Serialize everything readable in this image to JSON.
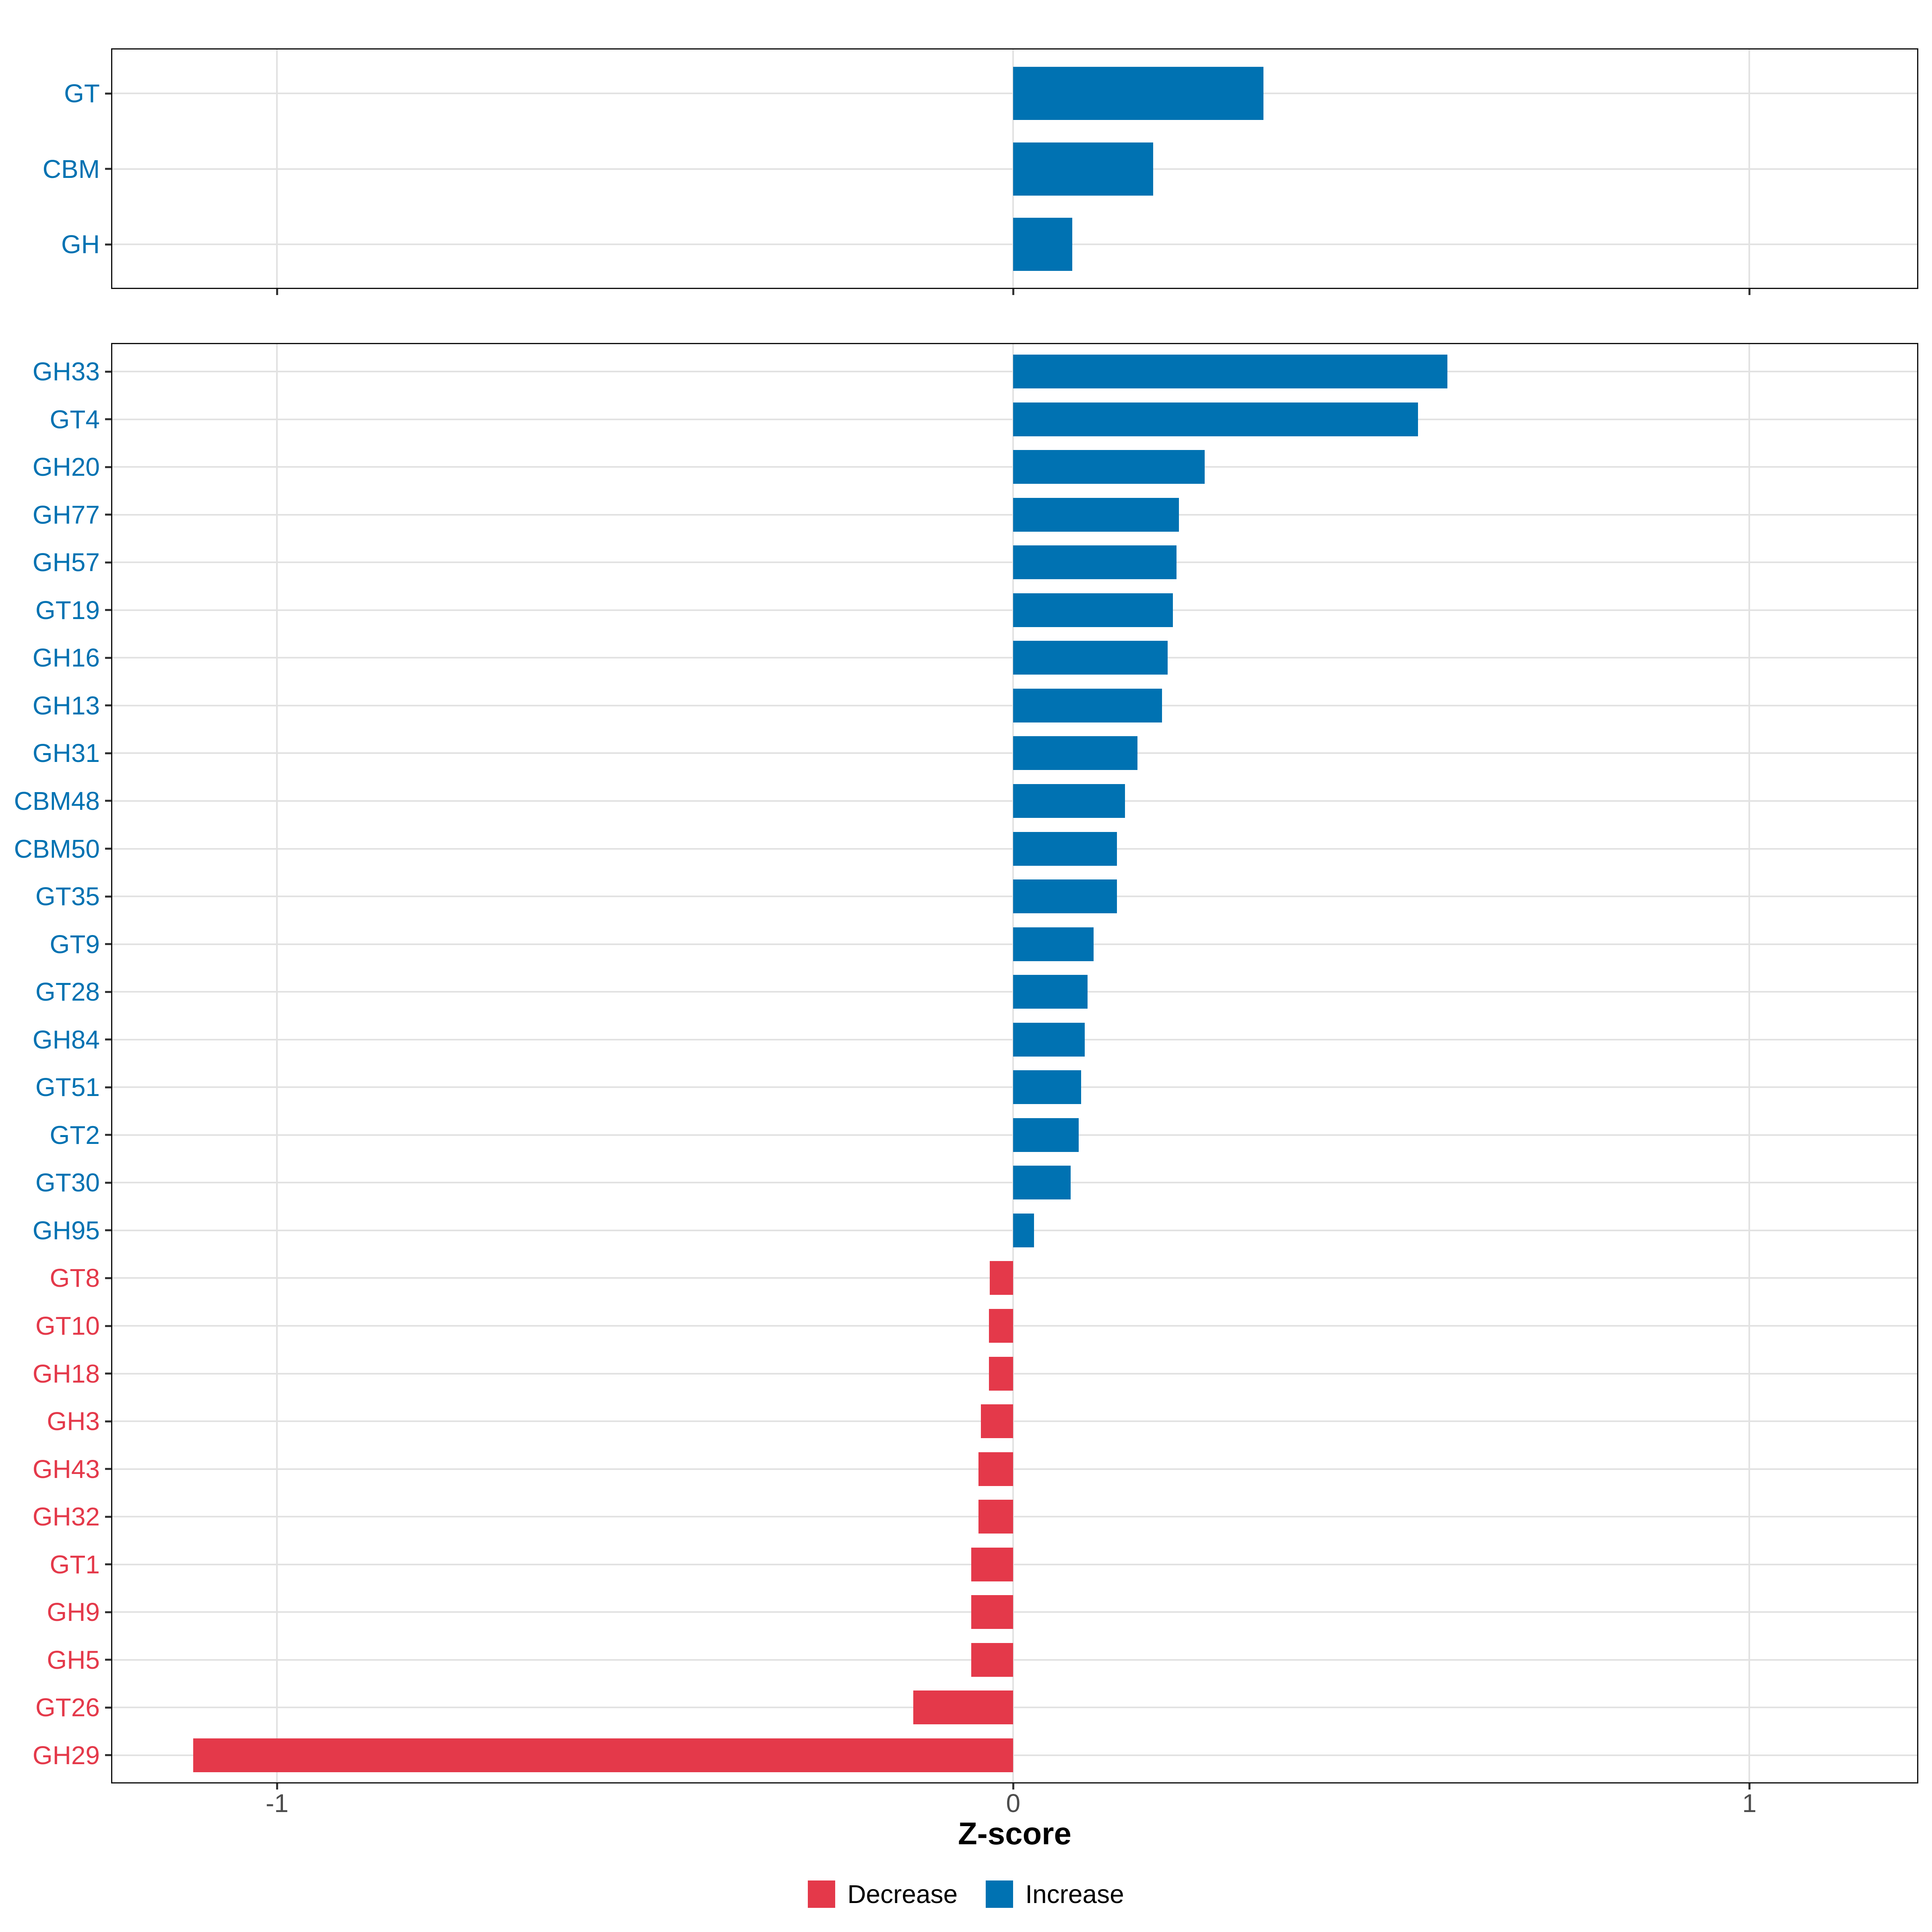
{
  "chart_data": [
    {
      "id": "classes-panel",
      "type": "bar",
      "orientation": "horizontal",
      "categories": [
        "GT",
        "CBM",
        "GH"
      ],
      "values": [
        0.34,
        0.19,
        0.08
      ],
      "directions": [
        "Increase",
        "Increase",
        "Increase"
      ],
      "xlim": [
        -1.2255,
        1.2295
      ],
      "x_ticks": [
        -1,
        0,
        1
      ],
      "x_tick_labels": [
        "-1",
        "0",
        "1"
      ],
      "grid": "on",
      "xlabel": ""
    },
    {
      "id": "families-panel",
      "type": "bar",
      "orientation": "horizontal",
      "categories": [
        "GH33",
        "GT4",
        "GH20",
        "GH77",
        "GH57",
        "GT19",
        "GH16",
        "GH13",
        "GH31",
        "CBM48",
        "CBM50",
        "GT35",
        "GT9",
        "GT28",
        "GH84",
        "GT51",
        "GT2",
        "GT30",
        "GH95",
        "GT8",
        "GT10",
        "GH18",
        "GH3",
        "GH43",
        "GH32",
        "GT1",
        "GH9",
        "GH5",
        "GT26",
        "GH29"
      ],
      "values": [
        0.59,
        0.55,
        0.26,
        0.225,
        0.222,
        0.217,
        0.21,
        0.202,
        0.169,
        0.152,
        0.141,
        0.141,
        0.109,
        0.101,
        0.097,
        0.092,
        0.089,
        0.078,
        0.028,
        -0.032,
        -0.033,
        -0.033,
        -0.044,
        -0.047,
        -0.047,
        -0.057,
        -0.057,
        -0.057,
        -0.136,
        -1.114
      ],
      "directions": [
        "Increase",
        "Increase",
        "Increase",
        "Increase",
        "Increase",
        "Increase",
        "Increase",
        "Increase",
        "Increase",
        "Increase",
        "Increase",
        "Increase",
        "Increase",
        "Increase",
        "Increase",
        "Increase",
        "Increase",
        "Increase",
        "Increase",
        "Decrease",
        "Decrease",
        "Decrease",
        "Decrease",
        "Decrease",
        "Decrease",
        "Decrease",
        "Decrease",
        "Decrease",
        "Decrease",
        "Decrease"
      ],
      "xlim": [
        -1.2255,
        1.2295
      ],
      "x_ticks": [
        -1,
        0,
        1
      ],
      "x_tick_labels": [
        "-1",
        "0",
        "1"
      ],
      "grid": "on",
      "xlabel": "Z-score"
    }
  ],
  "legend": {
    "items": [
      {
        "label": "Decrease",
        "color": "#e4394a"
      },
      {
        "label": "Increase",
        "color": "#0072b2"
      }
    ]
  },
  "colors": {
    "increase": "#0072b2",
    "decrease": "#e4394a",
    "grid": "#e2e2e2",
    "panel_border": "#111111",
    "tick": "#333333",
    "tick_label": "#4d4d4d",
    "background": "#ffffff"
  }
}
